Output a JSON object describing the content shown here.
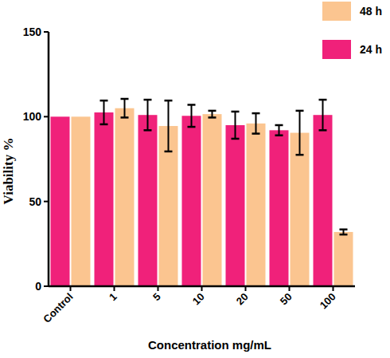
{
  "chart_data": {
    "type": "bar",
    "x_label": "Concentration mg/mL",
    "y_label": "Viability %",
    "categories": [
      "Control",
      "1",
      "5",
      "10",
      "20",
      "50",
      "100"
    ],
    "series": [
      {
        "name": "24 h",
        "color": "#f0217a",
        "values": [
          100,
          102.5,
          101,
          100.5,
          95,
          92,
          101
        ],
        "errors": [
          0,
          7,
          9,
          6.5,
          8,
          3,
          9
        ]
      },
      {
        "name": "48 h",
        "color": "#fbc590",
        "values": [
          100,
          105,
          94.5,
          101.5,
          96,
          90.5,
          32
        ],
        "errors": [
          0,
          5.5,
          15,
          2,
          6,
          13,
          1.5
        ]
      }
    ],
    "ylim": [
      0,
      150
    ],
    "yticks": [
      0,
      50,
      100,
      150
    ],
    "grid": false,
    "legend": "upper right"
  }
}
